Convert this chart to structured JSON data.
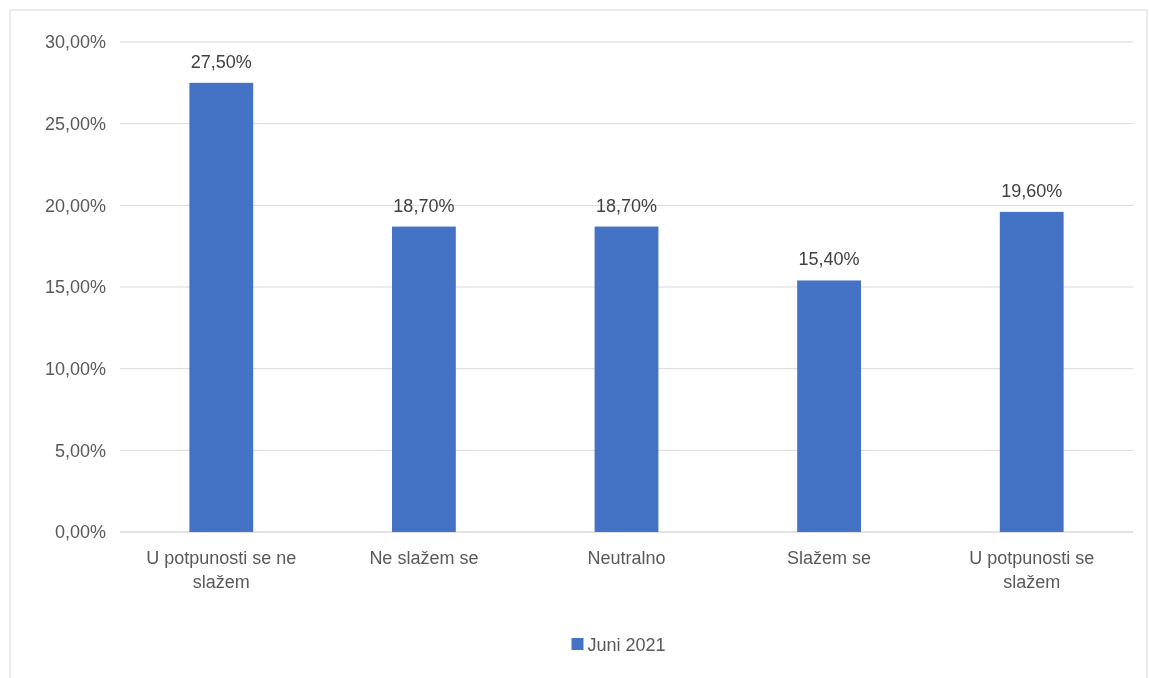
{
  "chart_data": {
    "type": "bar",
    "categories": [
      "U potpunosti se ne slažem",
      "Ne slažem se",
      "Neutralno",
      "Slažem se",
      "U potpunosti se slažem"
    ],
    "series": [
      {
        "name": "Juni 2021",
        "color": "#4472c4",
        "values": [
          27.5,
          18.7,
          18.7,
          15.4,
          19.6
        ],
        "value_labels": [
          "27,50%",
          "18,70%",
          "18,70%",
          "15,40%",
          "19,60%"
        ]
      }
    ],
    "ylim": [
      0,
      30
    ],
    "yticks": [
      {
        "value": 0,
        "label": "0,00%"
      },
      {
        "value": 5,
        "label": "5,00%"
      },
      {
        "value": 10,
        "label": "10,00%"
      },
      {
        "value": 15,
        "label": "15,00%"
      },
      {
        "value": 20,
        "label": "20,00%"
      },
      {
        "value": 25,
        "label": "25,00%"
      },
      {
        "value": 30,
        "label": "30,00%"
      }
    ],
    "grid": "y",
    "legend": "bottom"
  }
}
